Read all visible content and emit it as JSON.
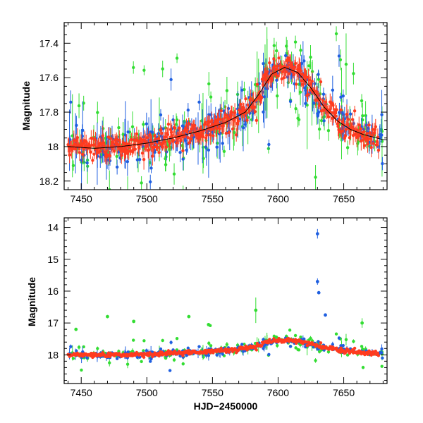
{
  "chart_data": [
    {
      "type": "scatter",
      "panel": "top",
      "title": "",
      "xlabel": "",
      "ylabel": "Magnitude",
      "xlim": [
        7437,
        7683
      ],
      "ylim": [
        18.25,
        17.28
      ],
      "y_inverted": true,
      "xticks": [
        7450,
        7500,
        7550,
        7600,
        7650
      ],
      "yticks": [
        17.4,
        17.6,
        17.8,
        18,
        18.2
      ],
      "ytick_labels": [
        "17.4",
        "17.6",
        "17.8",
        "18",
        "18.2"
      ],
      "model_curve": {
        "x": [
          7440,
          7460,
          7480,
          7500,
          7520,
          7540,
          7560,
          7575,
          7585,
          7595,
          7605,
          7615,
          7625,
          7635,
          7645,
          7655,
          7665,
          7675,
          7680
        ],
        "y": [
          18.0,
          18.01,
          18.0,
          17.98,
          17.95,
          17.91,
          17.86,
          17.8,
          17.7,
          17.58,
          17.54,
          17.57,
          17.66,
          17.77,
          17.85,
          17.9,
          17.93,
          17.95,
          17.96
        ]
      },
      "series": [
        {
          "color": "#ff3b1f",
          "points": []
        },
        {
          "color": "#1f5fe0",
          "points": []
        },
        {
          "color": "#33dd33",
          "points": []
        }
      ]
    },
    {
      "type": "scatter",
      "panel": "bottom",
      "title": "",
      "xlabel": "HJD−2450000",
      "ylabel": "Magnitude",
      "xlim": [
        7437,
        7683
      ],
      "ylim": [
        18.9,
        13.7
      ],
      "y_inverted": true,
      "xticks": [
        7450,
        7500,
        7550,
        7600,
        7650
      ],
      "yticks": [
        14,
        15,
        16,
        17,
        18
      ],
      "ytick_labels": [
        "14",
        "15",
        "16",
        "17",
        "18"
      ],
      "outliers": [
        {
          "x": 7630,
          "y": 14.2,
          "err": 0.15,
          "color": "#1f5fe0"
        },
        {
          "x": 7630,
          "y": 15.7,
          "err": 0.1,
          "color": "#1f5fe0"
        },
        {
          "x": 7631,
          "y": 16.05,
          "err": 0.05,
          "color": "#1f5fe0"
        },
        {
          "x": 7636,
          "y": 16.75,
          "err": 0.05,
          "color": "#1f5fe0"
        },
        {
          "x": 7664,
          "y": 17.0,
          "err": 0.15,
          "color": "#33dd33"
        },
        {
          "x": 7583,
          "y": 16.6,
          "err": 0.4,
          "color": "#33dd33"
        },
        {
          "x": 7470,
          "y": 16.8,
          "err": 0.05,
          "color": "#33dd33"
        },
        {
          "x": 7532,
          "y": 16.8,
          "err": 0.05,
          "color": "#33dd33"
        },
        {
          "x": 7490,
          "y": 16.95,
          "err": 0.05,
          "color": "#33dd33"
        },
        {
          "x": 7547,
          "y": 17.05,
          "err": 0.05,
          "color": "#33dd33"
        },
        {
          "x": 7446,
          "y": 17.2,
          "err": 0.05,
          "color": "#33dd33"
        }
      ]
    }
  ]
}
